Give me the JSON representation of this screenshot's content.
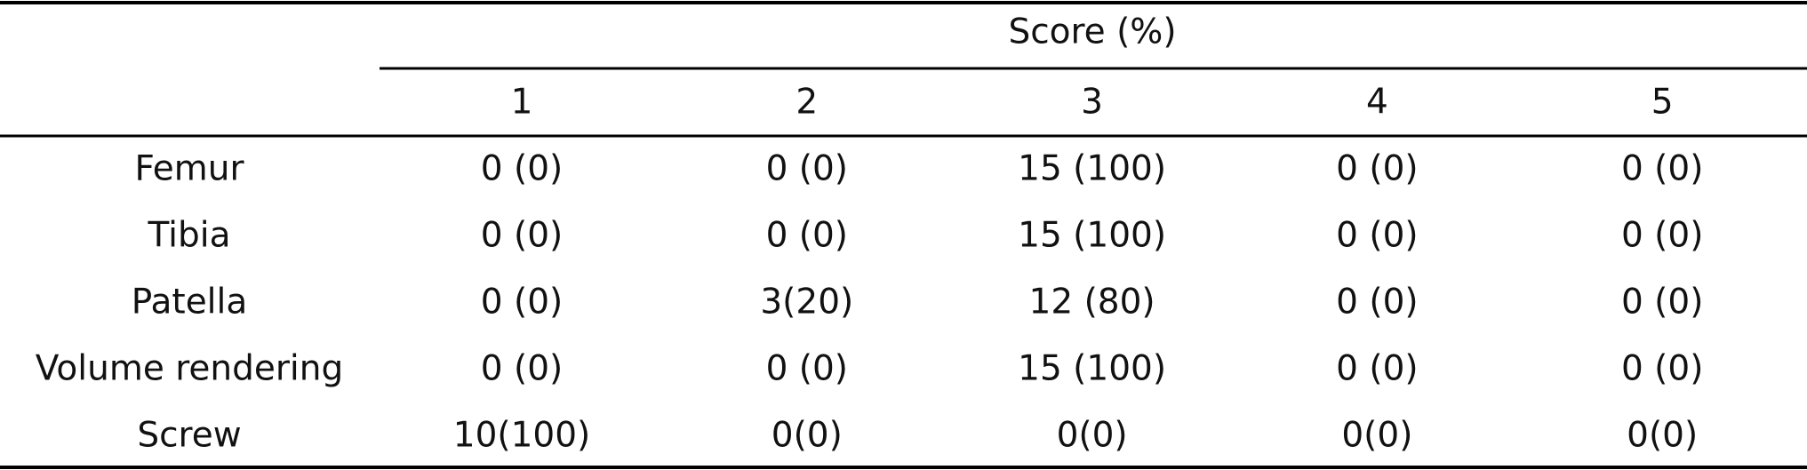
{
  "table": {
    "group_header": "Score (%)",
    "columns": [
      "1",
      "2",
      "3",
      "4",
      "5"
    ],
    "rows": [
      {
        "label": "Femur",
        "cells": [
          "0 (0)",
          "0 (0)",
          "15 (100)",
          "0 (0)",
          "0 (0)"
        ]
      },
      {
        "label": "Tibia",
        "cells": [
          "0 (0)",
          "0 (0)",
          "15 (100)",
          "0 (0)",
          "0 (0)"
        ]
      },
      {
        "label": "Patella",
        "cells": [
          "0 (0)",
          "3(20)",
          "12 (80)",
          "0 (0)",
          "0 (0)"
        ]
      },
      {
        "label": "Volume rendering",
        "cells": [
          "0 (0)",
          "0 (0)",
          "15 (100)",
          "0 (0)",
          "0 (0)"
        ]
      },
      {
        "label": "Screw",
        "cells": [
          "10(100)",
          "0(0)",
          "0(0)",
          "0(0)",
          "0(0)"
        ]
      }
    ]
  }
}
